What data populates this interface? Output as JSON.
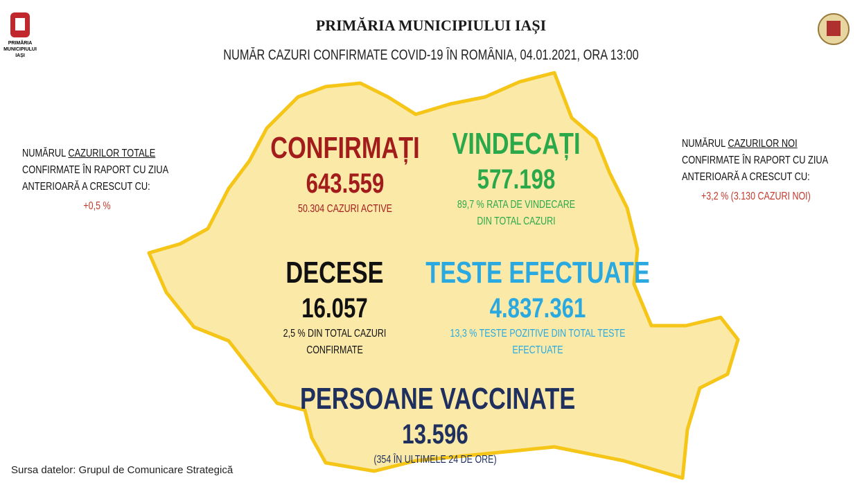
{
  "header": {
    "title": "PRIMĂRIA MUNICIPIULUI IAȘI",
    "subtitle": "NUMĂR CAZURI CONFIRMATE COVID-19 ÎN ROMÂNIA, 04.01.2021, ORA 13:00"
  },
  "logo": {
    "lines": [
      "PRIMĂRIA",
      "MUNICIPIULUI",
      "IAȘI"
    ]
  },
  "left_note": {
    "prefix": "NUMĂRUL ",
    "underlined": "CAZURILOR TOTALE",
    "line2": "CONFIRMATE  ÎN  RAPORT CU ZIUA",
    "line3": "ANTERIOARĂ A CRESCUT CU:",
    "value": "+0,5 %"
  },
  "right_note": {
    "prefix": "NUMĂRUL ",
    "underlined": "CAZURILOR NOI",
    "line2": "CONFIRMATE  ÎN  RAPORT CU ZIUA",
    "line3": "ANTERIOARĂ A CRESCUT CU:",
    "value": "+3,2 % (3.130 CAZURI NOI)"
  },
  "stats": [
    {
      "label": "CONFIRMAȚI",
      "value": "643.559",
      "notes": [
        "50.304 CAZURI ACTIVE"
      ],
      "color": "#a31c1c"
    },
    {
      "label": "VINDECAȚI",
      "value": "577.198",
      "notes": [
        "89,7 % RATA DE VINDECARE",
        "DIN TOTAL CAZURI"
      ],
      "color": "#2aa84a"
    },
    {
      "label": "DECESE",
      "value": "16.057",
      "notes": [
        "2,5 % DIN TOTAL CAZURI",
        "CONFIRMATE"
      ],
      "color": "#111111"
    },
    {
      "label": "TESTE EFECTUATE",
      "value": "4.837.361",
      "notes": [
        "13,3 % TESTE POZITIVE DIN TOTAL TESTE",
        "EFECTUATE"
      ],
      "color": "#29a9e0"
    },
    {
      "label": "PERSOANE VACCINATE",
      "value": "13.596",
      "notes": [
        "(354 ÎN ULTIMELE 24 DE ORE)"
      ],
      "color": "#1f2f5e"
    }
  ],
  "footer": {
    "source": "Sursa datelor: Grupul de Comunicare Strategică"
  }
}
